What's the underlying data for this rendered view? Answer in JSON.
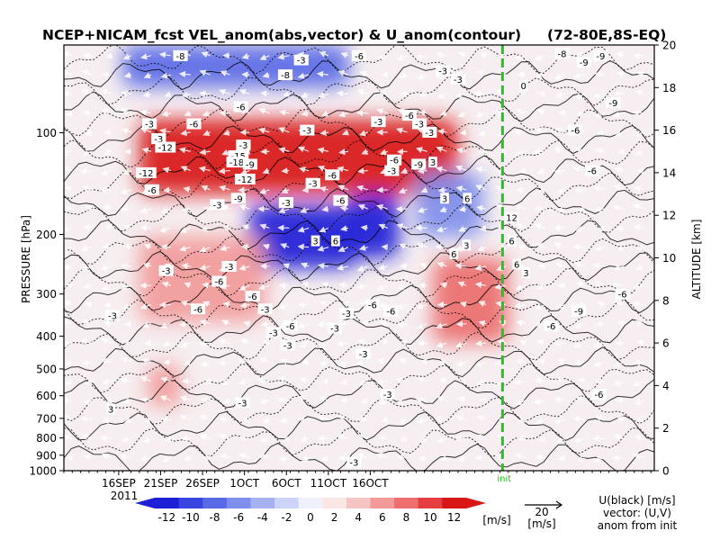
{
  "chart_data": {
    "type": "heatmap",
    "title": "NCEP+NICAM_fcst VEL_anom(abs,vector) & U_anom(contour)",
    "region": "(72-80E,8S-EQ)",
    "left_axis": {
      "label": "PRESSURE [hPa]",
      "scale": "log",
      "range": [
        1000,
        55
      ],
      "ticks": [
        "100",
        "200",
        "300",
        "400",
        "500",
        "600",
        "700",
        "800",
        "900",
        "1000"
      ]
    },
    "right_axis": {
      "label": "ALTITUDE [km]",
      "range": [
        0,
        20
      ],
      "ticks": [
        "0",
        "2",
        "4",
        "6",
        "8",
        "10",
        "12",
        "14",
        "16",
        "18",
        "20"
      ]
    },
    "x_axis": {
      "ticks": [
        "16SEP",
        "21SEP",
        "26SEP",
        "1OCT",
        "6OCT",
        "11OCT",
        "16OCT"
      ],
      "year": "2011"
    },
    "init_marker": {
      "date": "11OCT",
      "label": "init",
      "color": "#22c422"
    },
    "colorbar": {
      "ticks": [
        "-12",
        "-10",
        "-8",
        "-6",
        "-4",
        "-2",
        "0",
        "2",
        "4",
        "6",
        "8",
        "10",
        "12"
      ],
      "unit": "[m/s]",
      "colors": [
        "#1f1fd6",
        "#3a44e0",
        "#5a6ae6",
        "#7f8eec",
        "#a6b1f2",
        "#cdd3f8",
        "#eef0fc",
        "#fbe6e6",
        "#f7c4c4",
        "#f29a9a",
        "#ec6e6e",
        "#e43e3e",
        "#d81616"
      ]
    },
    "vector_key": {
      "value": "20",
      "unit": "[m/s]"
    },
    "legend_note": [
      "U(black) [m/s]",
      "vector: (U,V)",
      "anom from init"
    ],
    "anomaly_features": [
      {
        "kind": "positive",
        "days": [
          9,
          47
        ],
        "altitude_km": [
          13,
          16.5
        ],
        "peak": 12
      },
      {
        "kind": "negative",
        "days": [
          22,
          35
        ],
        "altitude_km": [
          9.5,
          12.5
        ],
        "peak": -12
      },
      {
        "kind": "negative",
        "days": [
          34,
          40
        ],
        "altitude_km": [
          10,
          13
        ],
        "peak": -12
      },
      {
        "kind": "positive",
        "days": [
          9,
          24
        ],
        "altitude_km": [
          7,
          11
        ],
        "peak": 6
      },
      {
        "kind": "positive",
        "days": [
          44,
          53
        ],
        "altitude_km": [
          6,
          10
        ],
        "peak": 8
      },
      {
        "kind": "positive",
        "days": [
          10,
          14
        ],
        "altitude_km": [
          3,
          5
        ],
        "peak": 6
      },
      {
        "kind": "negative",
        "days": [
          7,
          34
        ],
        "altitude_km": [
          18,
          20
        ],
        "peak": -8
      },
      {
        "kind": "negative",
        "days": [
          42,
          50
        ],
        "altitude_km": [
          11,
          14
        ],
        "peak": -6
      }
    ],
    "contour_labels": [
      {
        "text": "-8",
        "day": 13.9,
        "km": 19.5
      },
      {
        "text": "-3",
        "day": 28.3,
        "km": 19.3
      },
      {
        "text": "-6",
        "day": 35.2,
        "km": 19.5
      },
      {
        "text": "-3",
        "day": 10.2,
        "km": 16.3
      },
      {
        "text": "-3",
        "day": 11.3,
        "km": 15.6
      },
      {
        "text": "-6",
        "day": 15.5,
        "km": 16.3
      },
      {
        "text": "-12",
        "day": 12.1,
        "km": 15.2
      },
      {
        "text": "-6",
        "day": 21.1,
        "km": 17.1
      },
      {
        "text": "-3",
        "day": 21.4,
        "km": 15.3
      },
      {
        "text": "-15",
        "day": 20.8,
        "km": 14.8
      },
      {
        "text": "-18",
        "day": 20.6,
        "km": 14.5
      },
      {
        "text": "-9",
        "day": 22.2,
        "km": 14.4
      },
      {
        "text": "-12",
        "day": 21.6,
        "km": 13.7
      },
      {
        "text": "-9",
        "day": 20.8,
        "km": 12.8
      },
      {
        "text": "-6",
        "day": 10.5,
        "km": 13.2
      },
      {
        "text": "-12",
        "day": 9.8,
        "km": 14.0
      },
      {
        "text": "-3",
        "day": 18.3,
        "km": 12.5
      },
      {
        "text": "-3",
        "day": 29.0,
        "km": 16.0
      },
      {
        "text": "-3",
        "day": 37.5,
        "km": 16.4
      },
      {
        "text": "-6",
        "day": 41.2,
        "km": 16.7
      },
      {
        "text": "-3",
        "day": 42.4,
        "km": 16.3
      },
      {
        "text": "-3",
        "day": 43.6,
        "km": 15.9
      },
      {
        "text": "-6",
        "day": 39.4,
        "km": 14.6
      },
      {
        "text": "-9",
        "day": 42.3,
        "km": 14.4
      },
      {
        "text": "-3",
        "day": 39.1,
        "km": 14.1
      },
      {
        "text": "-6",
        "day": 32.0,
        "km": 13.9
      },
      {
        "text": "-6",
        "day": 33.0,
        "km": 12.7
      },
      {
        "text": "-3",
        "day": 29.7,
        "km": 13.5
      },
      {
        "text": "-3",
        "day": 26.5,
        "km": 12.6
      },
      {
        "text": "3",
        "day": 45.4,
        "km": 12.8
      },
      {
        "text": "6",
        "day": 48.1,
        "km": 12.8
      },
      {
        "text": "12",
        "day": 53.4,
        "km": 11.9
      },
      {
        "text": "6",
        "day": 53.4,
        "km": 10.8
      },
      {
        "text": "6",
        "day": 32.4,
        "km": 10.8
      },
      {
        "text": "3",
        "day": 30.0,
        "km": 10.8
      },
      {
        "text": "6",
        "day": 46.5,
        "km": 10.2
      },
      {
        "text": "3",
        "day": 48.0,
        "km": 10.6
      },
      {
        "text": "6",
        "day": 54.0,
        "km": 9.7
      },
      {
        "text": "3",
        "day": 55.1,
        "km": 9.3
      },
      {
        "text": "-3",
        "day": 12.2,
        "km": 9.4
      },
      {
        "text": "-3",
        "day": 19.7,
        "km": 9.6
      },
      {
        "text": "-6",
        "day": 18.5,
        "km": 8.9
      },
      {
        "text": "-6",
        "day": 22.5,
        "km": 8.2
      },
      {
        "text": "-6",
        "day": 16.0,
        "km": 7.6
      },
      {
        "text": "-3",
        "day": 5.8,
        "km": 7.3
      },
      {
        "text": "-3",
        "day": 24.0,
        "km": 7.6
      },
      {
        "text": "-6",
        "day": 27.0,
        "km": 6.8
      },
      {
        "text": "-3",
        "day": 32.3,
        "km": 6.7
      },
      {
        "text": "-3",
        "day": 25.0,
        "km": 6.5
      },
      {
        "text": "-6",
        "day": 36.8,
        "km": 7.8
      },
      {
        "text": "-3",
        "day": 33.7,
        "km": 7.4
      },
      {
        "text": "-6",
        "day": 39.0,
        "km": 7.5
      },
      {
        "text": "-3",
        "day": 35.7,
        "km": 5.5
      },
      {
        "text": "-3",
        "day": 38.6,
        "km": 3.6
      },
      {
        "text": "-3",
        "day": 26.7,
        "km": 5.9
      },
      {
        "text": "3",
        "day": 5.6,
        "km": 2.9
      },
      {
        "text": "-3",
        "day": 21.3,
        "km": 3.2
      },
      {
        "text": "-3",
        "day": 34.6,
        "km": 0.4
      },
      {
        "text": "0",
        "day": 54.8,
        "km": 18.1
      },
      {
        "text": "-3",
        "day": 45.2,
        "km": 18.8
      },
      {
        "text": "-3",
        "day": 47.0,
        "km": 18.4
      },
      {
        "text": "-8",
        "day": 59.4,
        "km": 19.6
      },
      {
        "text": "-9",
        "day": 64.0,
        "km": 19.5
      },
      {
        "text": "-9",
        "day": 62.0,
        "km": 19.2
      },
      {
        "text": "-6",
        "day": 63.0,
        "km": 14.1
      },
      {
        "text": "-6",
        "day": 61.0,
        "km": 16.0
      },
      {
        "text": "-9",
        "day": 61.4,
        "km": 7.5
      },
      {
        "text": "-6",
        "day": 66.6,
        "km": 8.3
      },
      {
        "text": "-6",
        "day": 58.1,
        "km": 6.8
      },
      {
        "text": "-6",
        "day": 63.8,
        "km": 3.6
      },
      {
        "text": "-8",
        "day": 26.4,
        "km": 18.6
      },
      {
        "text": "-9",
        "day": 65.5,
        "km": 17.3
      },
      {
        "text": "3",
        "day": 44.0,
        "km": 14.5
      }
    ]
  }
}
